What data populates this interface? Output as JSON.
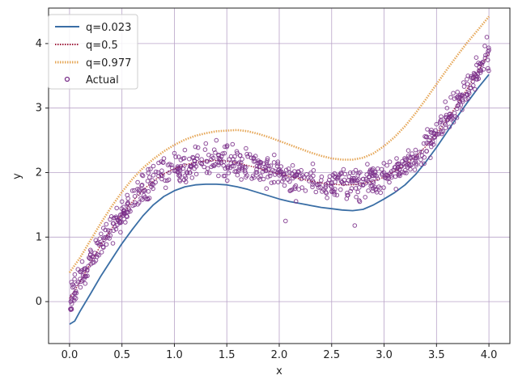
{
  "chart_data": {
    "type": "line",
    "title": "",
    "xlabel": "x",
    "ylabel": "y",
    "xlim": [
      -0.2,
      4.2
    ],
    "ylim": [
      -0.65,
      4.55
    ],
    "xticks": [
      0.0,
      0.5,
      1.0,
      1.5,
      2.0,
      2.5,
      3.0,
      3.5,
      4.0
    ],
    "xtick_labels": [
      "0.0",
      "0.5",
      "1.0",
      "1.5",
      "2.0",
      "2.5",
      "3.0",
      "3.5",
      "4.0"
    ],
    "yticks": [
      0,
      1,
      2,
      3,
      4
    ],
    "ytick_labels": [
      "0",
      "1",
      "2",
      "3",
      "4"
    ],
    "grid": true,
    "legend_position": "top-left",
    "colors": {
      "q_low": "#3a6ea5",
      "q_mid": "#a01e3c",
      "q_high": "#e6a85a",
      "actual": "#7a2f8a",
      "grid": "#b9a3c8"
    },
    "series": [
      {
        "name": "q=0.023",
        "x": [
          0.0,
          0.05,
          0.1,
          0.2,
          0.3,
          0.4,
          0.5,
          0.6,
          0.7,
          0.8,
          0.9,
          1.0,
          1.1,
          1.2,
          1.3,
          1.4,
          1.5,
          1.6,
          1.7,
          1.8,
          1.9,
          2.0,
          2.1,
          2.2,
          2.3,
          2.4,
          2.5,
          2.6,
          2.7,
          2.8,
          2.9,
          3.0,
          3.1,
          3.2,
          3.3,
          3.4,
          3.5,
          3.6,
          3.7,
          3.8,
          3.9,
          4.0
        ],
        "y": [
          -0.35,
          -0.3,
          -0.15,
          0.12,
          0.4,
          0.65,
          0.9,
          1.12,
          1.33,
          1.5,
          1.63,
          1.72,
          1.78,
          1.81,
          1.82,
          1.82,
          1.81,
          1.78,
          1.74,
          1.69,
          1.64,
          1.59,
          1.55,
          1.52,
          1.49,
          1.46,
          1.44,
          1.42,
          1.41,
          1.43,
          1.5,
          1.59,
          1.69,
          1.81,
          1.97,
          2.17,
          2.39,
          2.63,
          2.87,
          3.1,
          3.32,
          3.52
        ]
      },
      {
        "name": "q=0.5",
        "x": [
          0.0,
          0.1,
          0.2,
          0.3,
          0.4,
          0.5,
          0.6,
          0.7,
          0.8,
          0.9,
          1.0,
          1.1,
          1.2,
          1.3,
          1.4,
          1.5,
          1.6,
          1.7,
          1.8,
          1.9,
          2.0,
          2.1,
          2.2,
          2.3,
          2.4,
          2.5,
          2.6,
          2.7,
          2.8,
          2.9,
          3.0,
          3.1,
          3.2,
          3.3,
          3.4,
          3.5,
          3.6,
          3.7,
          3.8,
          3.9,
          4.0
        ],
        "y": [
          0.05,
          0.3,
          0.6,
          0.88,
          1.13,
          1.35,
          1.55,
          1.73,
          1.87,
          1.98,
          2.06,
          2.12,
          2.16,
          2.18,
          2.19,
          2.18,
          2.15,
          2.11,
          2.07,
          2.02,
          1.98,
          1.94,
          1.9,
          1.87,
          1.84,
          1.82,
          1.81,
          1.81,
          1.83,
          1.87,
          1.93,
          2.02,
          2.12,
          2.25,
          2.41,
          2.6,
          2.82,
          3.06,
          3.32,
          3.58,
          3.85
        ]
      },
      {
        "name": "q=0.977",
        "x": [
          0.0,
          0.1,
          0.2,
          0.3,
          0.4,
          0.5,
          0.6,
          0.7,
          0.8,
          0.9,
          1.0,
          1.1,
          1.2,
          1.3,
          1.4,
          1.5,
          1.6,
          1.7,
          1.8,
          1.9,
          2.0,
          2.1,
          2.2,
          2.3,
          2.4,
          2.5,
          2.6,
          2.7,
          2.8,
          2.9,
          3.0,
          3.1,
          3.2,
          3.3,
          3.4,
          3.5,
          3.6,
          3.7,
          3.8,
          3.9,
          4.0
        ],
        "y": [
          0.45,
          0.68,
          0.95,
          1.22,
          1.47,
          1.7,
          1.9,
          2.07,
          2.21,
          2.33,
          2.43,
          2.51,
          2.57,
          2.61,
          2.64,
          2.65,
          2.66,
          2.64,
          2.6,
          2.55,
          2.49,
          2.43,
          2.37,
          2.31,
          2.26,
          2.22,
          2.2,
          2.2,
          2.23,
          2.3,
          2.41,
          2.55,
          2.72,
          2.92,
          3.14,
          3.37,
          3.6,
          3.82,
          4.03,
          4.22,
          4.42
        ]
      }
    ],
    "scatter": {
      "name": "Actual",
      "count": 800,
      "x_range": [
        0.0,
        4.0
      ],
      "y_center_series": "q=0.5",
      "points": [
        [
          0.02,
          -0.12
        ],
        [
          0.03,
          0.22
        ],
        [
          0.05,
          0.42
        ],
        [
          0.06,
          0.05
        ],
        [
          0.08,
          0.5
        ],
        [
          0.1,
          0.35
        ],
        [
          0.12,
          0.62
        ],
        [
          0.15,
          0.28
        ],
        [
          0.18,
          0.55
        ],
        [
          0.2,
          0.8
        ],
        [
          0.22,
          0.6
        ],
        [
          0.25,
          0.95
        ],
        [
          0.28,
          0.72
        ],
        [
          0.3,
          1.05
        ],
        [
          0.32,
          0.85
        ],
        [
          0.35,
          1.2
        ],
        [
          0.38,
          0.98
        ],
        [
          0.4,
          1.32
        ],
        [
          0.42,
          1.1
        ],
        [
          0.45,
          1.45
        ],
        [
          0.48,
          1.22
        ],
        [
          0.5,
          1.55
        ],
        [
          0.52,
          1.28
        ],
        [
          0.55,
          1.65
        ],
        [
          0.58,
          1.4
        ],
        [
          0.6,
          1.72
        ],
        [
          0.62,
          1.5
        ],
        [
          0.65,
          1.85
        ],
        [
          0.68,
          1.6
        ],
        [
          0.7,
          1.95
        ],
        [
          0.72,
          1.72
        ],
        [
          0.75,
          2.05
        ],
        [
          0.78,
          1.78
        ],
        [
          0.8,
          2.1
        ],
        [
          0.82,
          1.85
        ],
        [
          0.85,
          2.15
        ],
        [
          0.88,
          1.9
        ],
        [
          0.9,
          2.22
        ],
        [
          0.95,
          2.0
        ],
        [
          1.0,
          2.3
        ],
        [
          1.05,
          2.05
        ],
        [
          1.1,
          2.35
        ],
        [
          1.15,
          2.1
        ],
        [
          1.2,
          2.4
        ],
        [
          1.25,
          2.15
        ],
        [
          1.3,
          2.45
        ],
        [
          1.35,
          2.2
        ],
        [
          1.4,
          2.5
        ],
        [
          1.42,
          1.95
        ],
        [
          1.45,
          2.25
        ],
        [
          1.5,
          2.4
        ],
        [
          1.55,
          2.1
        ],
        [
          1.6,
          2.3
        ],
        [
          1.65,
          2.05
        ],
        [
          1.7,
          2.25
        ],
        [
          1.75,
          1.95
        ],
        [
          1.8,
          2.15
        ],
        [
          1.85,
          1.9
        ],
        [
          1.9,
          2.1
        ],
        [
          1.95,
          1.85
        ],
        [
          2.0,
          2.05
        ],
        [
          2.05,
          1.8
        ],
        [
          2.06,
          1.25
        ],
        [
          2.1,
          2.0
        ],
        [
          2.15,
          1.75
        ],
        [
          2.2,
          1.95
        ],
        [
          2.25,
          1.72
        ],
        [
          2.3,
          1.92
        ],
        [
          2.35,
          1.7
        ],
        [
          2.4,
          1.88
        ],
        [
          2.45,
          1.68
        ],
        [
          2.5,
          1.85
        ],
        [
          2.55,
          1.65
        ],
        [
          2.6,
          1.85
        ],
        [
          2.65,
          1.65
        ],
        [
          2.7,
          1.88
        ],
        [
          2.72,
          1.18
        ],
        [
          2.75,
          1.7
        ],
        [
          2.8,
          1.9
        ],
        [
          2.85,
          1.72
        ],
        [
          2.9,
          1.95
        ],
        [
          2.95,
          1.78
        ],
        [
          3.0,
          2.0
        ],
        [
          3.05,
          1.85
        ],
        [
          3.1,
          2.08
        ],
        [
          3.15,
          1.95
        ],
        [
          3.2,
          2.2
        ],
        [
          3.25,
          2.05
        ],
        [
          3.3,
          2.35
        ],
        [
          3.35,
          2.2
        ],
        [
          3.4,
          2.55
        ],
        [
          3.45,
          2.4
        ],
        [
          3.5,
          2.75
        ],
        [
          3.55,
          2.6
        ],
        [
          3.6,
          3.0
        ],
        [
          3.65,
          2.85
        ],
        [
          3.7,
          3.25
        ],
        [
          3.75,
          3.1
        ],
        [
          3.8,
          3.5
        ],
        [
          3.85,
          3.35
        ],
        [
          3.9,
          3.7
        ],
        [
          3.95,
          3.6
        ],
        [
          4.0,
          3.9
        ],
        [
          3.98,
          4.1
        ],
        [
          3.92,
          3.55
        ]
      ]
    },
    "legend": [
      {
        "label": "q=0.023",
        "style": "line"
      },
      {
        "label": "q=0.5",
        "style": "dotted-line"
      },
      {
        "label": "q=0.977",
        "style": "dotted-line"
      },
      {
        "label": "Actual",
        "style": "marker"
      }
    ]
  }
}
